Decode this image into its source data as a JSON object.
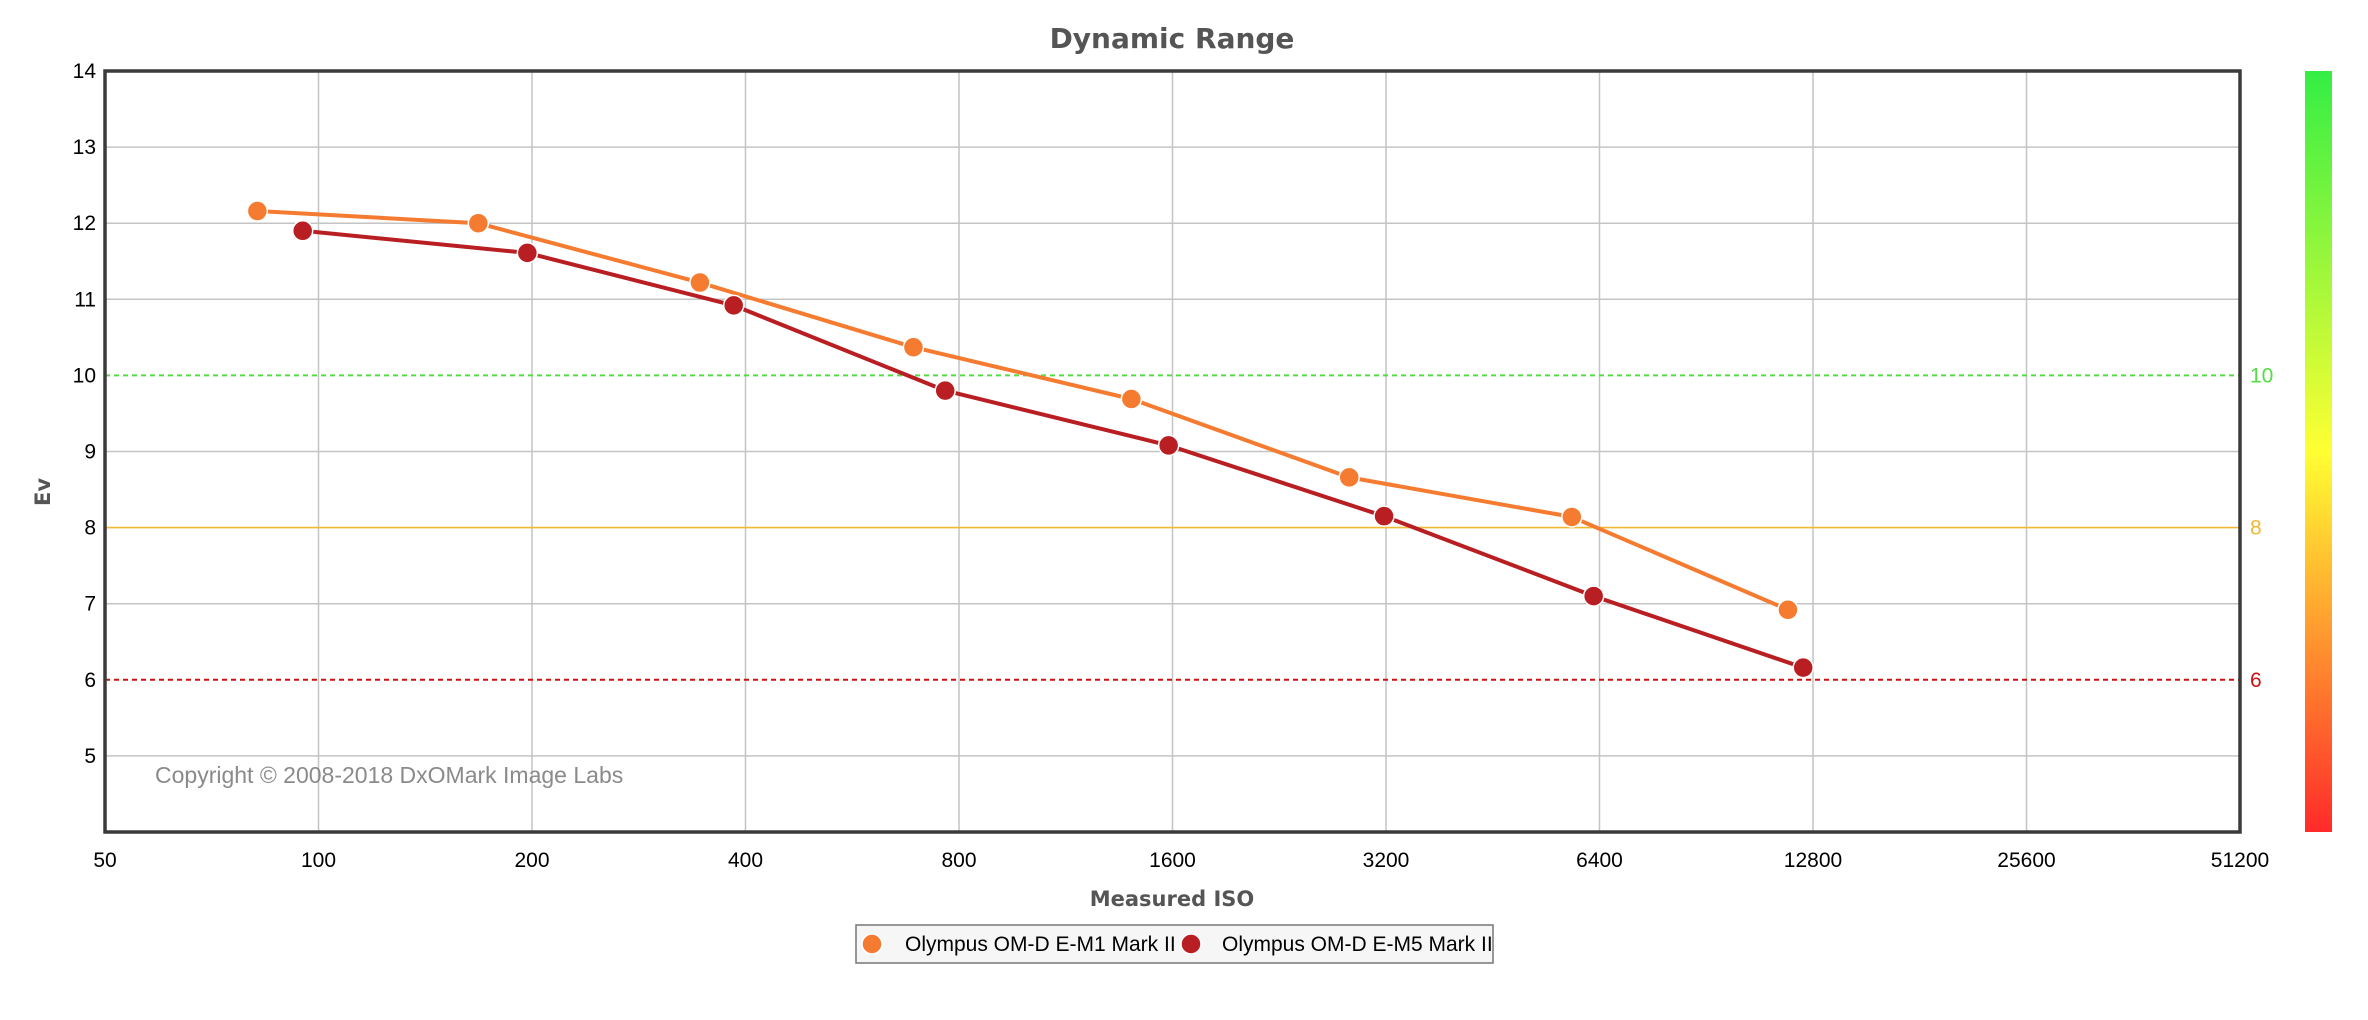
{
  "chart_data": {
    "type": "line",
    "title": "Dynamic Range",
    "xlabel": "Measured ISO",
    "ylabel": "Ev",
    "x_scale": "log2",
    "x_ticks": [
      50,
      100,
      200,
      400,
      800,
      1600,
      3200,
      6400,
      12800,
      25600,
      51200
    ],
    "xlim": [
      50,
      51200
    ],
    "y_ticks": [
      5,
      6,
      7,
      8,
      9,
      10,
      11,
      12,
      13,
      14
    ],
    "ylim": [
      4,
      14
    ],
    "grid": true,
    "series": [
      {
        "name": "Olympus OM-D E-M1 Mark II",
        "color": "#f47b30",
        "points": [
          {
            "x": 82,
            "y": 12.16
          },
          {
            "x": 168,
            "y": 12.0
          },
          {
            "x": 345,
            "y": 11.22
          },
          {
            "x": 690,
            "y": 10.37
          },
          {
            "x": 1400,
            "y": 9.69
          },
          {
            "x": 2840,
            "y": 8.66
          },
          {
            "x": 5850,
            "y": 8.14
          },
          {
            "x": 11800,
            "y": 6.92
          }
        ]
      },
      {
        "name": "Olympus OM-D E-M5 Mark II",
        "color": "#b81e22",
        "points": [
          {
            "x": 95,
            "y": 11.9
          },
          {
            "x": 197,
            "y": 11.61
          },
          {
            "x": 385,
            "y": 10.92
          },
          {
            "x": 765,
            "y": 9.8
          },
          {
            "x": 1580,
            "y": 9.08
          },
          {
            "x": 3180,
            "y": 8.15
          },
          {
            "x": 6280,
            "y": 7.1
          },
          {
            "x": 12400,
            "y": 6.16
          }
        ]
      }
    ],
    "reference_lines": [
      {
        "value": 10,
        "label": "10",
        "color": "#55dd44",
        "style": "dashed"
      },
      {
        "value": 8,
        "label": "8",
        "color": "#f2b833",
        "style": "solid"
      },
      {
        "value": 6,
        "label": "6",
        "color": "#cc1111",
        "style": "dashed"
      }
    ],
    "legend_position": "bottom-center",
    "color_scale": {
      "bottom": "#ff2a2a",
      "middle": "#ffff33",
      "top": "#33ee44"
    },
    "annotation": "Copyright © 2008-2018 DxOMark Image Labs"
  }
}
